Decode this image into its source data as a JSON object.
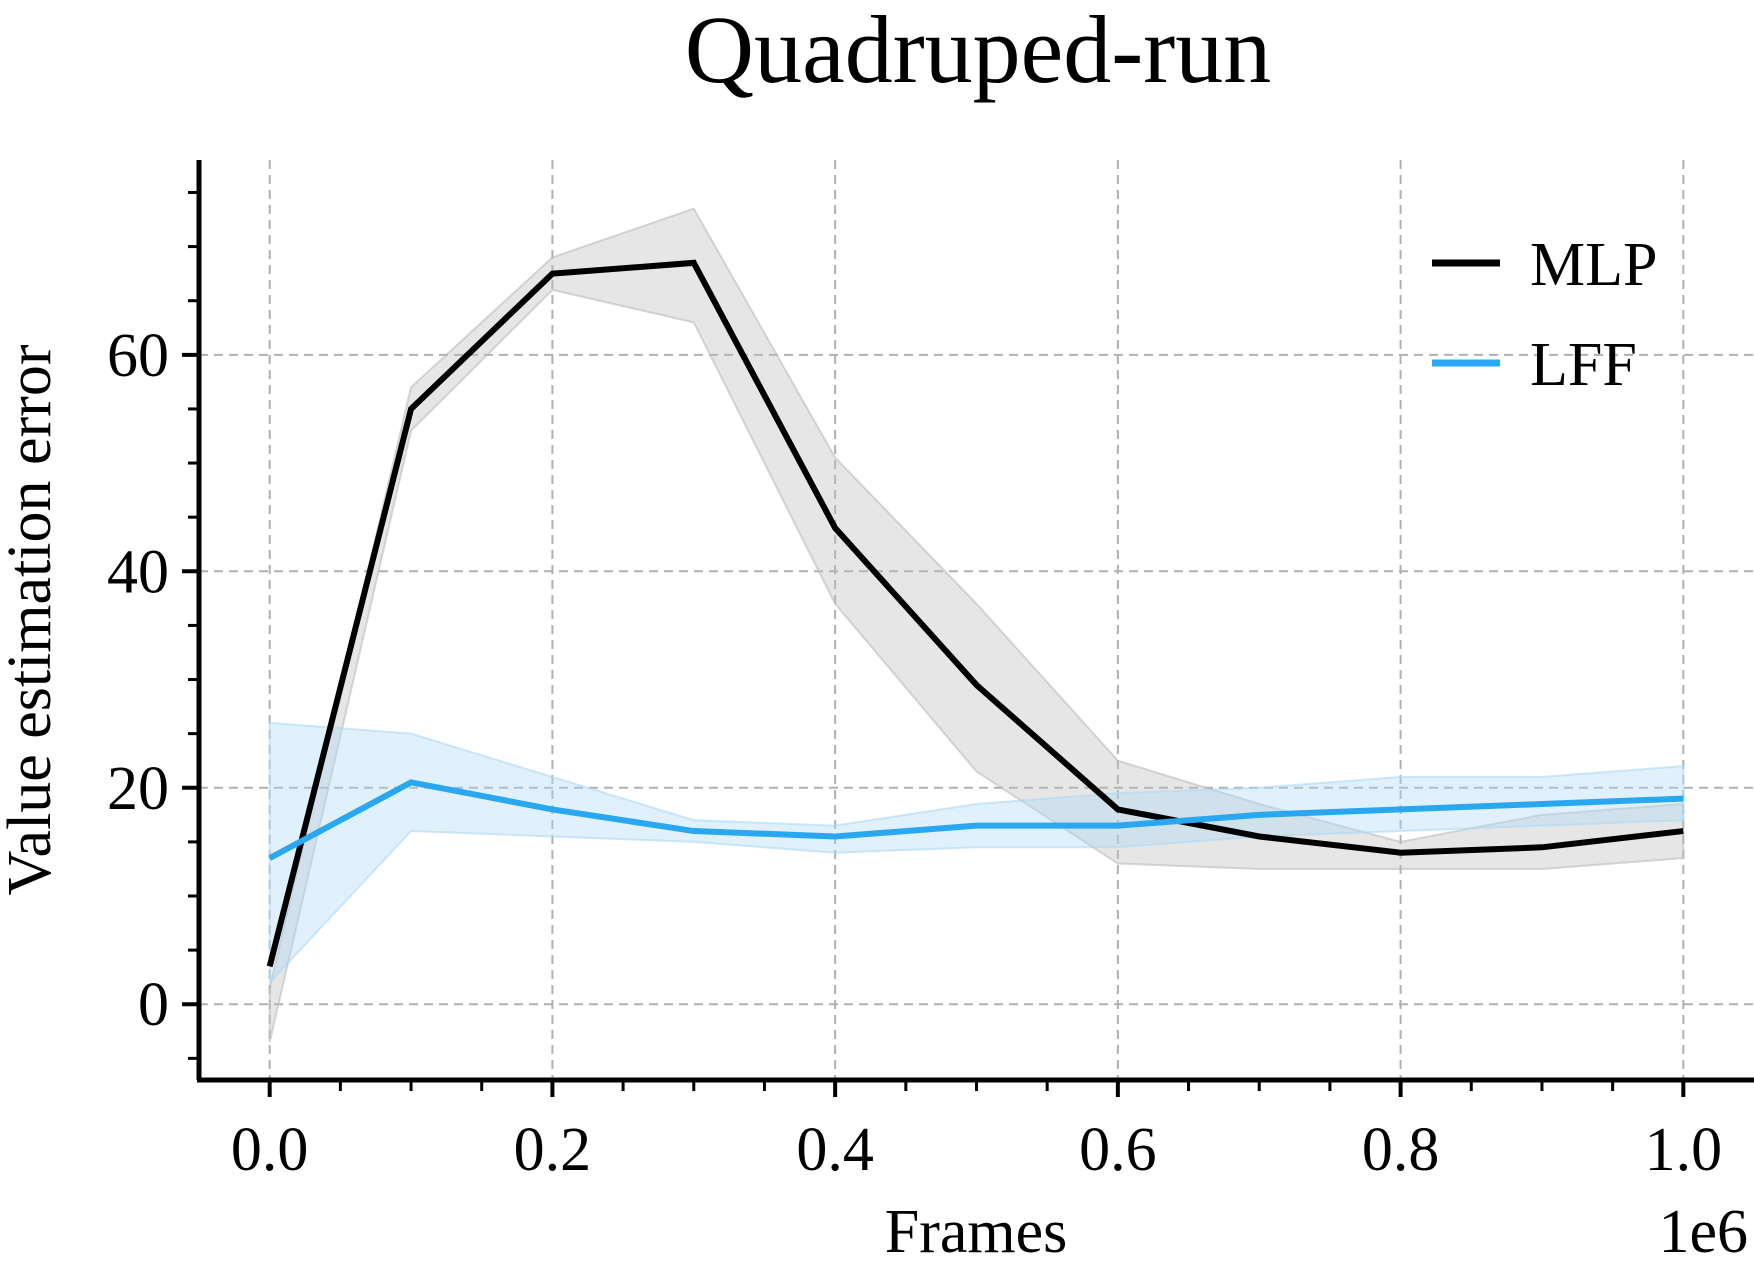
{
  "chart_data": {
    "type": "line",
    "title": "Quadruped-run",
    "xlabel": "Frames",
    "ylabel": "Value estimation error",
    "x_offset_text": "1e6",
    "xlim": [
      -0.05,
      1.05
    ],
    "ylim": [
      -7,
      78
    ],
    "x_ticks": [
      0.0,
      0.2,
      0.4,
      0.6,
      0.8,
      1.0
    ],
    "x_tick_labels": [
      "0.0",
      "0.2",
      "0.4",
      "0.6",
      "0.8",
      "1.0"
    ],
    "y_ticks": [
      0,
      20,
      40,
      60
    ],
    "y_tick_labels": [
      "0",
      "20",
      "40",
      "60"
    ],
    "grid": true,
    "legend_position": "top-right",
    "x": [
      0.0,
      0.1,
      0.2,
      0.3,
      0.4,
      0.5,
      0.6,
      0.7,
      0.8,
      0.9,
      1.0
    ],
    "series": [
      {
        "name": "MLP",
        "color": "#000000",
        "band_color": "#bdbdbd",
        "values": [
          3.5,
          55,
          67.5,
          68.5,
          44,
          29.5,
          18,
          15.5,
          14,
          14.5,
          16
        ],
        "lower": [
          -3.5,
          53,
          66,
          63,
          37,
          21.5,
          13,
          12.5,
          12.5,
          12.5,
          13.5
        ],
        "upper": [
          1.5,
          57,
          69,
          73.5,
          50.5,
          37,
          22.5,
          18.5,
          15,
          17.5,
          18.5
        ]
      },
      {
        "name": "LFF",
        "color": "#29a8f1",
        "band_color": "#aed9f7",
        "values": [
          13.5,
          20.5,
          18,
          16,
          15.5,
          16.5,
          16.5,
          17.5,
          18,
          18.5,
          19
        ],
        "lower": [
          2,
          16,
          15.5,
          15,
          14,
          14.5,
          14.5,
          15.5,
          16,
          16.5,
          17
        ],
        "upper": [
          26,
          25,
          21,
          17,
          16.5,
          18.5,
          19.5,
          20,
          21,
          21,
          22
        ]
      }
    ]
  }
}
